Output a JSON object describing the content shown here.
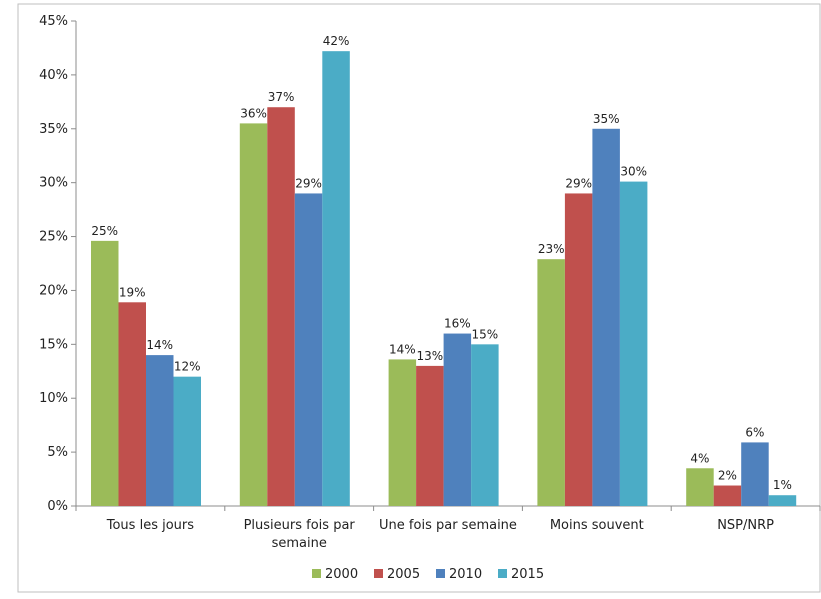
{
  "chart_data": {
    "type": "bar",
    "categories": [
      [
        "Tous les jours"
      ],
      [
        "Plusieurs fois par",
        "semaine"
      ],
      [
        "Une fois par semaine"
      ],
      [
        "Moins souvent"
      ],
      [
        "NSP/NRP"
      ]
    ],
    "series": [
      {
        "name": "2000",
        "color": "#9bbb59",
        "values": [
          24.6,
          35.5,
          13.6,
          22.9,
          3.5
        ],
        "labels": [
          "25%",
          "36%",
          "14%",
          "23%",
          "4%"
        ]
      },
      {
        "name": "2005",
        "color": "#c0504d",
        "values": [
          18.9,
          37.0,
          13.0,
          29.0,
          1.9
        ],
        "labels": [
          "19%",
          "37%",
          "13%",
          "29%",
          "2%"
        ]
      },
      {
        "name": "2010",
        "color": "#4f81bd",
        "values": [
          14.0,
          29.0,
          16.0,
          35.0,
          5.9
        ],
        "labels": [
          "14%",
          "29%",
          "16%",
          "35%",
          "6%"
        ]
      },
      {
        "name": "2015",
        "color": "#4bacc6",
        "values": [
          12.0,
          42.2,
          15.0,
          30.1,
          1.0
        ],
        "labels": [
          "12%",
          "42%",
          "15%",
          "30%",
          "1%"
        ]
      }
    ],
    "yticks": [
      "0%",
      "5%",
      "10%",
      "15%",
      "20%",
      "25%",
      "30%",
      "35%",
      "40%",
      "45%"
    ],
    "ylim": [
      0,
      45
    ],
    "grid": false,
    "legend_position": "bottom",
    "title": "",
    "xlabel": "",
    "ylabel": ""
  }
}
